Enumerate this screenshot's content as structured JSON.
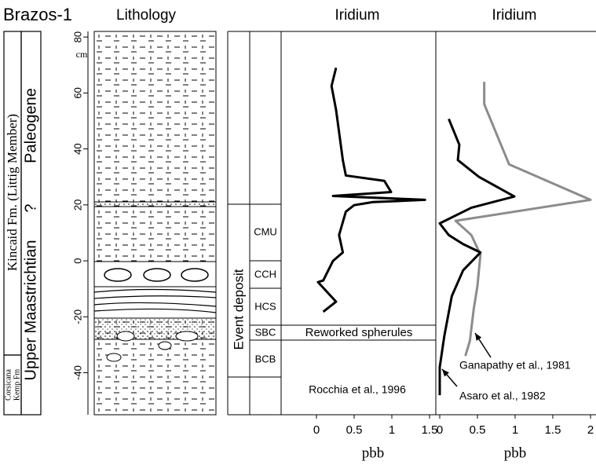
{
  "header": {
    "site": "Brazos-1",
    "lithology": "Lithology"
  },
  "stratigraphy": {
    "formation": "Kincaid Fm. (Littig Member)",
    "lower_formation": [
      "Corsicana",
      "Kemp Fm"
    ],
    "stages": [
      "Upper Maastrichtian",
      "Paleogene"
    ],
    "query": "?",
    "depth_unit": "cm",
    "event": "Event deposit",
    "units": [
      "CMU",
      "CCH",
      "HCS",
      "SBC",
      "BCB"
    ],
    "spherules": "Reworked spherules"
  },
  "chart_data": [
    {
      "type": "line",
      "title": "Iridium",
      "xlabel": "pbb",
      "xlim": [
        0,
        1.5
      ],
      "xticks": [
        0,
        0.5,
        1,
        1.5
      ],
      "ylim": [
        -55,
        82
      ],
      "yticks": [
        80,
        60,
        40,
        20,
        0,
        -20,
        -40
      ],
      "series": [
        {
          "name": "Rocchia et al., 1996",
          "color": "#000000",
          "y": [
            69,
            62.5,
            54,
            44,
            36,
            30.5,
            28.6,
            24.6,
            23.2,
            21.8,
            21,
            19.9,
            17.6,
            9.2,
            3,
            0,
            -7,
            -7.6,
            -14.6,
            -18.2
          ],
          "values": [
            0.26,
            0.2,
            0.26,
            0.31,
            0.35,
            0.39,
            0.9,
            0.99,
            0.22,
            1.44,
            0.75,
            0.5,
            0.39,
            0.3,
            0.35,
            0.22,
            0.09,
            0.02,
            0.26,
            0.09
          ]
        }
      ]
    },
    {
      "type": "line",
      "title": "Iridium",
      "xlabel": "pbb",
      "xlim": [
        0,
        2
      ],
      "xticks": [
        0,
        0.5,
        1,
        1.5,
        2
      ],
      "ylim": [
        -55,
        82
      ],
      "series": [
        {
          "name": "Ganapathy et al., 1981",
          "color": "#8c8c8c",
          "y": [
            64,
            56,
            34.5,
            21.8,
            14.3,
            9.2,
            2.2,
            -9,
            -17.4,
            -28.6,
            -34
          ],
          "values": [
            0.59,
            0.59,
            0.92,
            2,
            0.21,
            0.42,
            0.54,
            0.5,
            0.45,
            0.4,
            0.34
          ]
        },
        {
          "name": "Asaro et al., 1982",
          "color": "#000000",
          "y": [
            50.7,
            41.5,
            36,
            30,
            23,
            19,
            13.4,
            9.2,
            6,
            3,
            -3.4,
            -12.6,
            -27,
            -38,
            -48
          ],
          "values": [
            0.12,
            0.26,
            0.24,
            0.52,
            0.99,
            0.42,
            0,
            0.12,
            0.31,
            0.54,
            0.31,
            0.16,
            0.06,
            0,
            0
          ]
        }
      ]
    }
  ]
}
